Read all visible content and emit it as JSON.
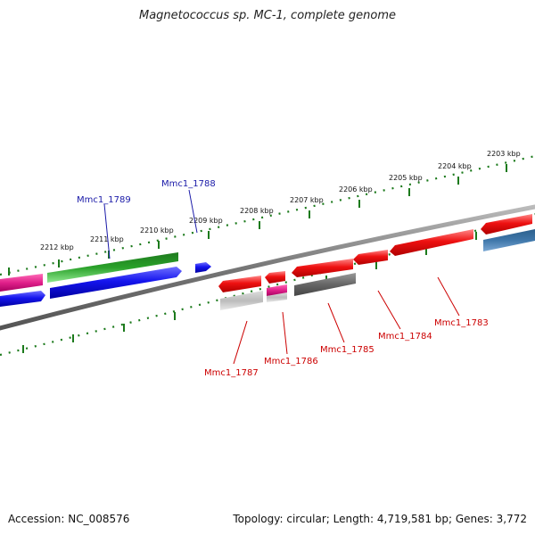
{
  "title": "Magnetococcus sp. MC-1, complete genome",
  "accession": "Accession: NC_008576",
  "topology": "Topology: circular; Length: 4,719,581 bp; Genes: 3,772",
  "scale_labels": [
    "2203 kbp",
    "2204 kbp",
    "2205 kbp",
    "2206 kbp",
    "2207 kbp",
    "2208 kbp",
    "2209 kbp",
    "2210 kbp",
    "2211 kbp",
    "2212 kbp"
  ],
  "genes_top": [
    {
      "name": "Mmc1_1789",
      "strand": "forward"
    },
    {
      "name": "Mmc1_1788",
      "strand": "forward"
    }
  ],
  "genes_bottom": [
    {
      "name": "Mmc1_1787",
      "strand": "reverse"
    },
    {
      "name": "Mmc1_1786",
      "strand": "reverse"
    },
    {
      "name": "Mmc1_1785",
      "strand": "reverse"
    },
    {
      "name": "Mmc1_1784",
      "strand": "reverse"
    },
    {
      "name": "Mmc1_1783",
      "strand": "reverse"
    }
  ],
  "colors": {
    "backbone": "#888888",
    "scale_tick": "#1c7a1c",
    "forward_label": "#1a1aa8",
    "reverse_label": "#cc0000",
    "red_gene": "#ee1111",
    "blue_gene": "#1515ee",
    "green_gene": "#2aa12a",
    "magenta_gene": "#e0208a",
    "gray_gene": "#666666",
    "lightgray_gene": "#bbbbbb",
    "steelblue_gene": "#3f77aa"
  }
}
